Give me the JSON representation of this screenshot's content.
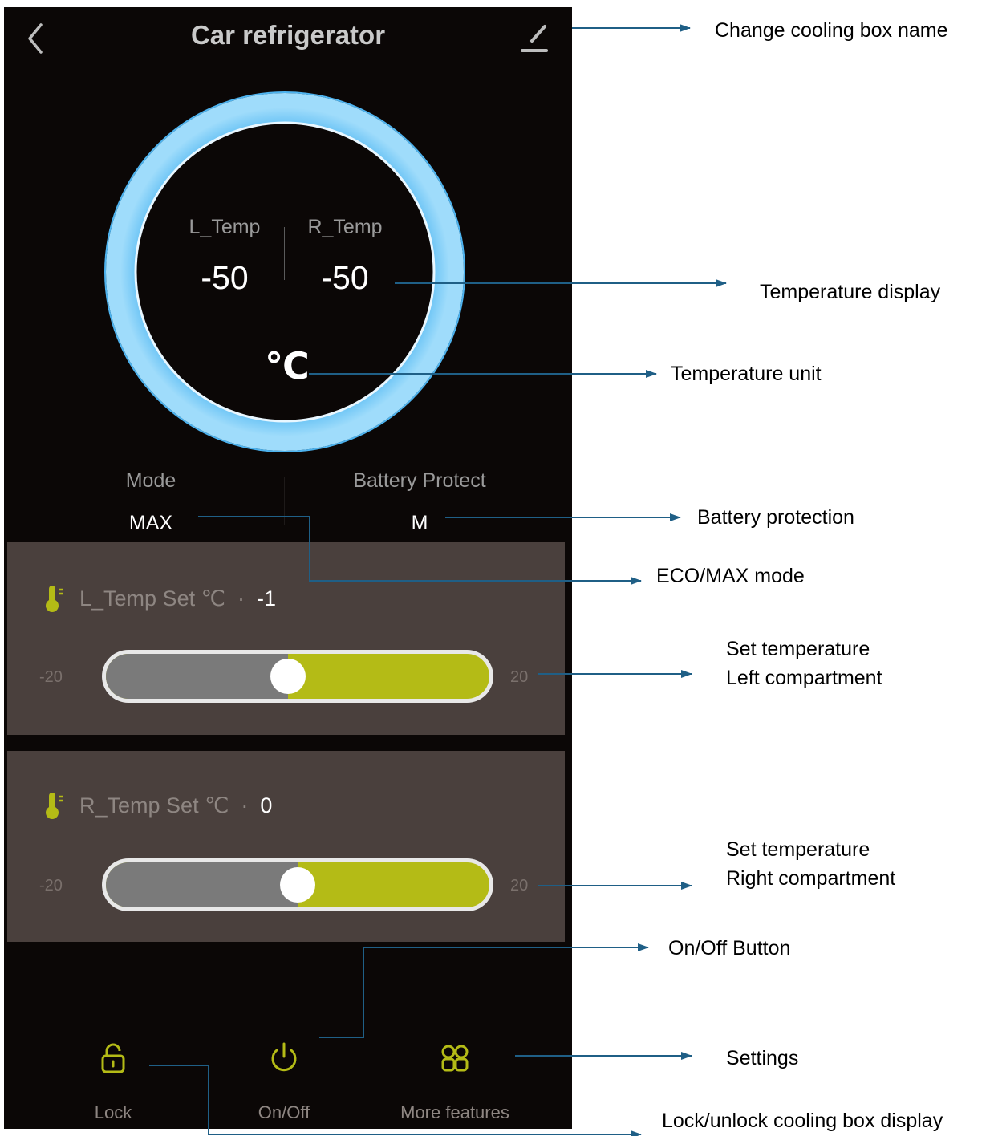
{
  "header": {
    "title": "Car refrigerator"
  },
  "display": {
    "left_label": "L_Temp",
    "right_label": "R_Temp",
    "left_value": "-50",
    "right_value": "-50",
    "unit": "℃"
  },
  "info": {
    "mode_label": "Mode",
    "mode_value": "MAX",
    "battery_label": "Battery Protect",
    "battery_value": "M"
  },
  "left_panel": {
    "label": "L_Temp Set ℃",
    "separator": "·",
    "value": "-1",
    "min": "-20",
    "max": "20",
    "slider_fraction": 0.475
  },
  "right_panel": {
    "label": "R_Temp Set ℃",
    "separator": "·",
    "value": "0",
    "min": "-20",
    "max": "20",
    "slider_fraction": 0.5
  },
  "nav": {
    "lock": "Lock",
    "power": "On/Off",
    "more": "More features"
  },
  "annotations": {
    "edit_name": "Change cooling box name",
    "temp_display": "Temperature display",
    "temp_unit": "Temperature unit",
    "battery": "Battery protection",
    "mode": "ECO/MAX mode",
    "left_set_1": "Set temperature",
    "left_set_2": "Left compartment",
    "right_set_1": "Set temperature",
    "right_set_2": "Right compartment",
    "onoff": "On/Off  Button",
    "settings": "Settings",
    "lock": "Lock/unlock cooling box display"
  },
  "colors": {
    "app_bg": "#0b0706",
    "panel_bg": "#4a403d",
    "accent": "#b4bb16",
    "ring": "#7fcdf7",
    "leader": "#1f5f86"
  }
}
